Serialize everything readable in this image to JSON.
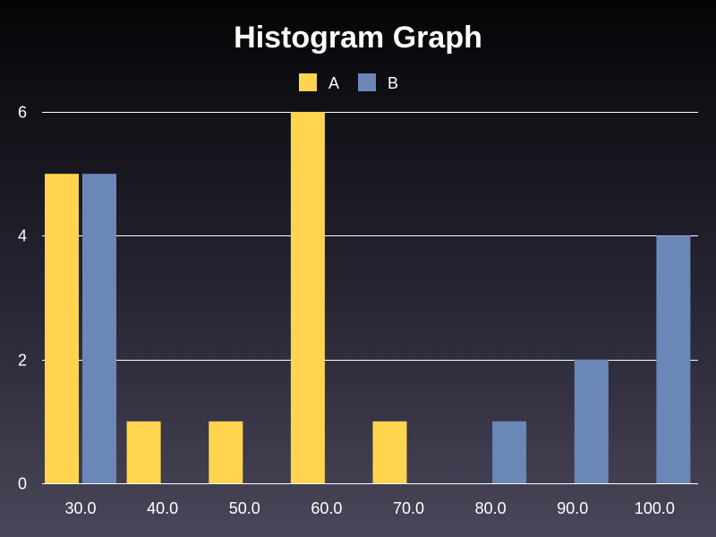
{
  "chart_data": {
    "type": "bar",
    "title": "Histogram Graph",
    "categories": [
      "30.0",
      "40.0",
      "50.0",
      "60.0",
      "70.0",
      "80.0",
      "90.0",
      "100.0"
    ],
    "series": [
      {
        "name": "A",
        "color": "#FFD54F",
        "values": [
          5,
          1,
          1,
          6,
          1,
          0,
          0,
          0
        ]
      },
      {
        "name": "B",
        "color": "#6A87B8",
        "values": [
          5,
          0,
          0,
          0,
          0,
          1,
          2,
          4
        ]
      }
    ],
    "ylim": [
      0,
      6
    ],
    "yticks": [
      "0",
      "2",
      "4",
      "6"
    ],
    "grid": true,
    "legend_position": "top-center"
  }
}
